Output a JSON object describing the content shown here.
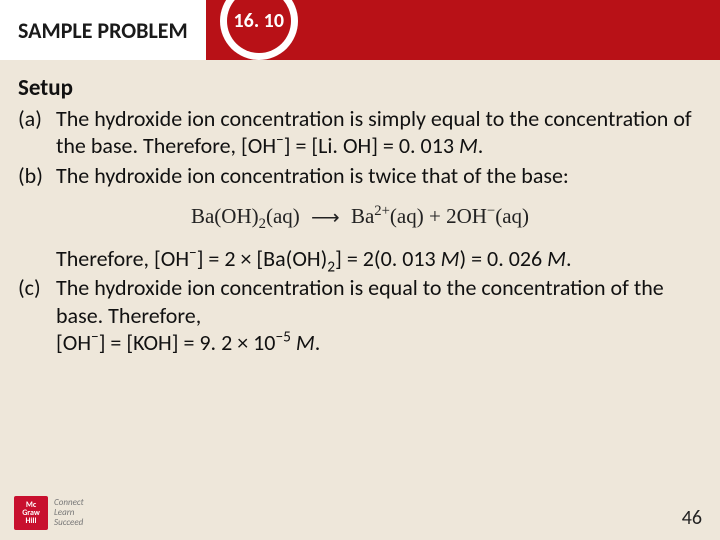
{
  "header": {
    "label": "SAMPLE PROBLEM",
    "number": "16. 10"
  },
  "setup_title": "Setup",
  "items": {
    "a": {
      "label": "(a)",
      "text_pre": "The hydroxide ion concentration is simply equal to the concentration of the base. Therefore, [OH",
      "text_mid1": "] = [Li. OH] = 0. 013 ",
      "text_end": "."
    },
    "b": {
      "label": "(b)",
      "text": "The hydroxide ion concentration is twice that of the base:"
    },
    "eqn": {
      "lhs1": "Ba(OH)",
      "lhs_sub": "2",
      "lhs_aq": "(aq)",
      "rhs1": "Ba",
      "rhs_sup1": "2+",
      "rhs_aq1": "(aq)",
      "plus": " + ",
      "rhs2": "2OH",
      "rhs_sup2": "−",
      "rhs_aq2": "(aq)"
    },
    "b2": {
      "pre": "Therefore, [OH",
      "mid1": "] = 2 × [Ba(OH)",
      "mid2": "] = 2(0. 013 ",
      "mid3": ") = 0. 026 ",
      "end": "."
    },
    "c": {
      "label": "(c)",
      "line1": "The hydroxide ion concentration is equal to the concentration of the base. Therefore,",
      "line2_pre": "[OH",
      "line2_mid": "] = [KOH] = 9. 2 × 10",
      "line2_sup": "−5",
      "line2_end": " "
    }
  },
  "M": "M",
  "footer": {
    "logo_text": "Mc\nGraw\nHill",
    "tag1": "Connect",
    "tag2": "Learn",
    "tag3": "Succeed",
    "page": "46"
  }
}
